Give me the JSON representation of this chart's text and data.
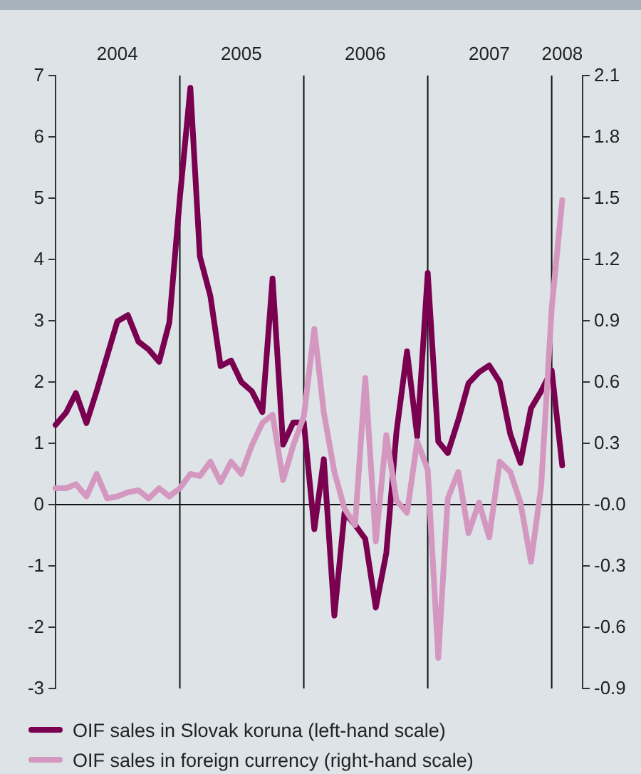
{
  "chart_data": {
    "type": "line",
    "x": [
      "2004-01",
      "2004-02",
      "2004-03",
      "2004-04",
      "2004-05",
      "2004-06",
      "2004-07",
      "2004-08",
      "2004-09",
      "2004-10",
      "2004-11",
      "2004-12",
      "2005-01",
      "2005-02",
      "2005-03",
      "2005-04",
      "2005-05",
      "2005-06",
      "2005-07",
      "2005-08",
      "2005-09",
      "2005-10",
      "2005-11",
      "2005-12",
      "2006-01",
      "2006-02",
      "2006-03",
      "2006-04",
      "2006-05",
      "2006-06",
      "2006-07",
      "2006-08",
      "2006-09",
      "2006-10",
      "2006-11",
      "2006-12",
      "2007-01",
      "2007-02",
      "2007-03",
      "2007-04",
      "2007-05",
      "2007-06",
      "2007-07",
      "2007-08",
      "2007-09",
      "2007-10",
      "2007-11",
      "2007-12",
      "2008-01",
      "2008-02"
    ],
    "series": [
      {
        "name": "OIF sales in Slovak koruna (left-hand scale)",
        "color": "#7a0050",
        "values": [
          1.3,
          1.5,
          1.82,
          1.33,
          1.85,
          2.43,
          2.99,
          3.09,
          2.66,
          2.53,
          2.33,
          2.97,
          5.0,
          6.8,
          4.05,
          3.4,
          2.26,
          2.35,
          2.0,
          1.85,
          1.51,
          3.69,
          0.98,
          1.34,
          1.34,
          -0.4,
          0.74,
          -1.81,
          -0.13,
          -0.33,
          -0.56,
          -1.68,
          -0.79,
          1.19,
          2.5,
          1.11,
          3.78,
          1.03,
          0.84,
          1.38,
          1.98,
          2.16,
          2.27,
          2.0,
          1.15,
          0.68,
          1.57,
          1.85,
          2.19,
          0.64
        ]
      },
      {
        "name": "OIF sales in foreign currency (right-hand scale)",
        "color": "#d497bf",
        "axis": "y2",
        "values": [
          0.08,
          0.08,
          0.1,
          0.04,
          0.15,
          0.03,
          0.04,
          0.06,
          0.07,
          0.03,
          0.08,
          0.04,
          0.08,
          0.15,
          0.14,
          0.21,
          0.11,
          0.21,
          0.15,
          0.29,
          0.4,
          0.44,
          0.12,
          0.29,
          0.43,
          0.86,
          0.45,
          0.16,
          -0.02,
          -0.1,
          0.62,
          -0.18,
          0.34,
          0.02,
          -0.04,
          0.31,
          0.17,
          -0.75,
          0.03,
          0.16,
          -0.14,
          0.01,
          -0.16,
          0.21,
          0.16,
          0.01,
          -0.28,
          0.09,
          0.96,
          1.49
        ]
      }
    ],
    "xlim": [
      "2004-01",
      "2008-04"
    ],
    "xticks": [
      {
        "value": "2004-07",
        "label": "2004"
      },
      {
        "value": "2005-07",
        "label": "2005"
      },
      {
        "value": "2006-07",
        "label": "2006"
      },
      {
        "value": "2007-07",
        "label": "2007"
      },
      {
        "value": "2008-02",
        "label": "2008"
      }
    ],
    "ylim": [
      -3,
      7
    ],
    "yticks": [
      -3,
      -2,
      -1,
      0,
      1,
      2,
      3,
      4,
      5,
      6,
      7
    ],
    "y2lim": [
      -0.9,
      2.1
    ],
    "y2ticks": [
      -0.9,
      -0.6,
      -0.3,
      {
        "value": 0,
        "label": "-0.0"
      },
      0.3,
      0.6,
      0.9,
      1.2,
      1.5,
      1.8,
      2.1
    ],
    "ref_lines": [
      {
        "axis": "y",
        "value": 0
      },
      {
        "axis": "x",
        "value": "2005-01"
      },
      {
        "axis": "x",
        "value": "2006-01"
      },
      {
        "axis": "x",
        "value": "2007-01"
      },
      {
        "axis": "x",
        "value": "2008-01"
      }
    ],
    "grid": false,
    "legend": "bottom",
    "marker": "none",
    "line_style": "solid"
  }
}
